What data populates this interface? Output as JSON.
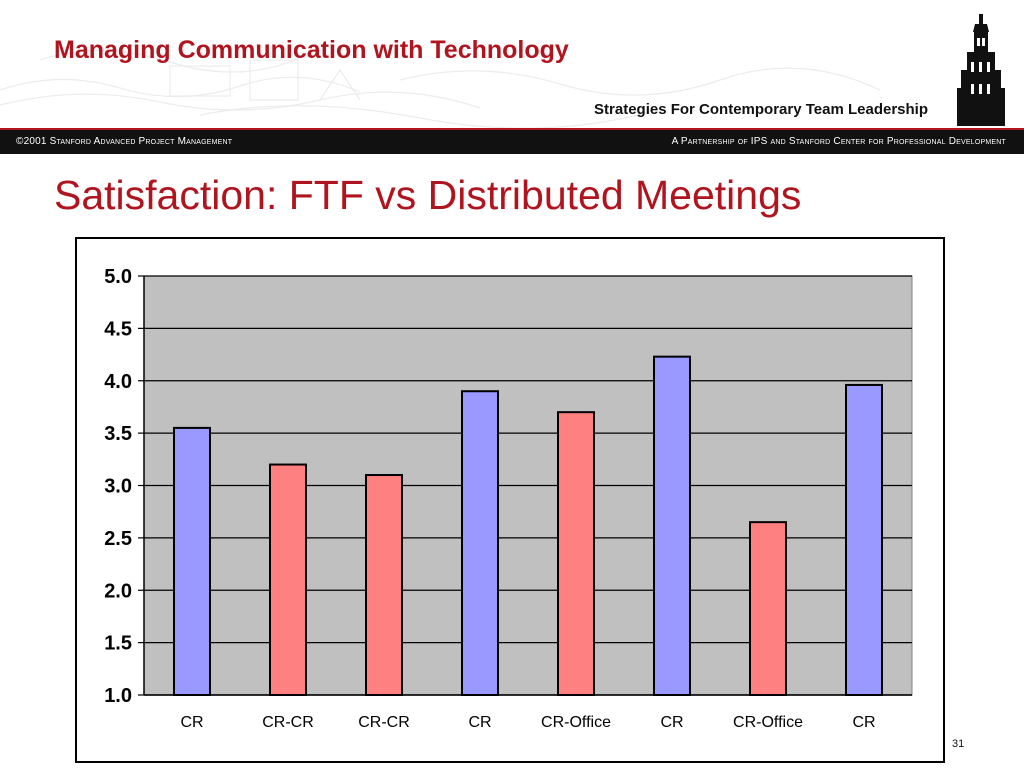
{
  "header": {
    "course_title": "Managing Communication with Technology",
    "subtitle": "Strategies For Contemporary Team Leadership",
    "bar_left": "©2001 Stanford Advanced Project Management",
    "bar_right": "A Partnership of IPS and Stanford Center for Professional Development"
  },
  "slide": {
    "title": "Satisfaction: FTF vs Distributed Meetings",
    "page_number": "31"
  },
  "colors": {
    "accent": "#b0141e",
    "bar_blue": "#9999ff",
    "bar_red": "#ff8080",
    "plot_bg": "#c0c0c0"
  },
  "chart_data": {
    "type": "bar",
    "categories": [
      "CR",
      "CR-CR",
      "CR-CR",
      "CR",
      "CR-Office",
      "CR",
      "CR-Office",
      "CR"
    ],
    "values": [
      3.55,
      3.2,
      3.1,
      3.9,
      3.7,
      4.23,
      2.65,
      3.96
    ],
    "bar_colors": [
      "#9999ff",
      "#ff8080",
      "#ff8080",
      "#9999ff",
      "#ff8080",
      "#9999ff",
      "#ff8080",
      "#9999ff"
    ],
    "y_ticks": [
      "1.0",
      "1.5",
      "2.0",
      "2.5",
      "3.0",
      "3.5",
      "4.0",
      "4.5",
      "5.0"
    ],
    "ylim": [
      1.0,
      5.0
    ],
    "grid": true,
    "title": "",
    "xlabel": "",
    "ylabel": ""
  }
}
